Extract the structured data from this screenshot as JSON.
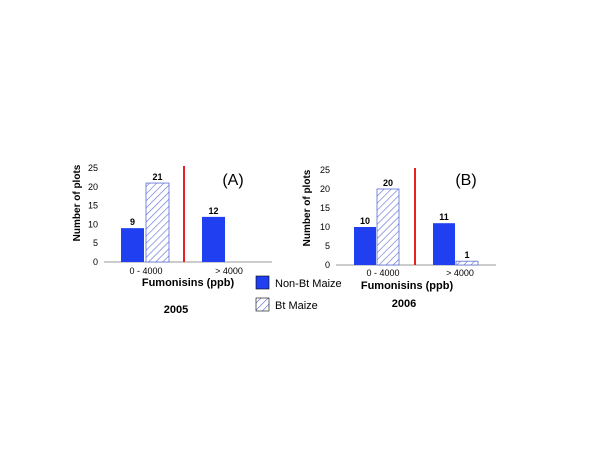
{
  "colors": {
    "non_bt": "#1f3ff0",
    "bt_hatch": "#5a6bd6",
    "divider": "#e8201f"
  },
  "legend": {
    "non_bt_label": "Non-Bt Maize",
    "bt_label": "Bt Maize"
  },
  "chart_data": [
    {
      "type": "bar",
      "panel_label": "(A)",
      "year": "2005",
      "categories": [
        "0 - 4000",
        "> 4000"
      ],
      "series": [
        {
          "name": "Non-Bt Maize",
          "values": [
            9,
            12
          ],
          "labels": [
            "9",
            "12"
          ]
        },
        {
          "name": "Bt Maize",
          "values": [
            21,
            0
          ],
          "labels": [
            "21",
            ""
          ]
        }
      ],
      "xlabel": "Fumonisins (ppb)",
      "ylabel": "Number of plots",
      "ylim": [
        0,
        25
      ],
      "yticks": [
        "0",
        "5",
        "10",
        "15",
        "20",
        "25"
      ]
    },
    {
      "type": "bar",
      "panel_label": "(B)",
      "year": "2006",
      "categories": [
        "0 - 4000",
        "> 4000"
      ],
      "series": [
        {
          "name": "Non-Bt Maize",
          "values": [
            10,
            11
          ],
          "labels": [
            "10",
            "11"
          ]
        },
        {
          "name": "Bt Maize",
          "values": [
            20,
            1
          ],
          "labels": [
            "20",
            "1"
          ]
        }
      ],
      "xlabel": "Fumonisins (ppb)",
      "ylabel": "Number of plots",
      "ylim": [
        0,
        25
      ],
      "yticks": [
        "0",
        "5",
        "10",
        "15",
        "20",
        "25"
      ]
    }
  ]
}
